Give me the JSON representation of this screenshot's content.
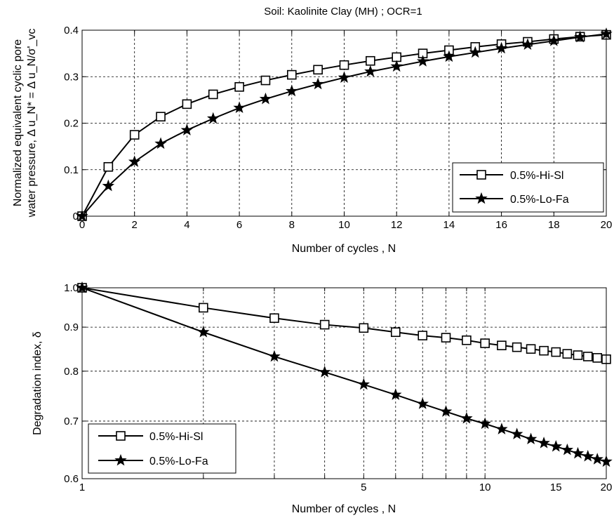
{
  "figure_title": "Soil: Kaolinite Clay (MH) ;  OCR=1",
  "colors": {
    "axes": "#000000",
    "series": "#000000",
    "grid": "#000000",
    "background": "#ffffff"
  },
  "chart_data": [
    {
      "type": "line",
      "title": "Soil: Kaolinite Clay (MH) ;  OCR=1",
      "xlabel": "Number of cycles , N",
      "ylabel_line1": "Normalized equivalent cyclic pore",
      "ylabel_line2": "water pressure, Δ u_N* = Δ u_N/σ'_vc",
      "xscale": "linear",
      "yscale": "linear",
      "xlim": [
        0,
        20
      ],
      "ylim": [
        0,
        0.4
      ],
      "xticks": [
        0,
        2,
        4,
        6,
        8,
        10,
        12,
        14,
        16,
        18,
        20
      ],
      "yticks": [
        0,
        0.1,
        0.2,
        0.3,
        0.4
      ],
      "grid": true,
      "legend_position": "bottom-right",
      "series": [
        {
          "name": "0.5%-Hi-Sl",
          "marker": "square",
          "x": [
            0,
            1,
            2,
            3,
            4,
            5,
            6,
            7,
            8,
            9,
            10,
            11,
            12,
            13,
            14,
            15,
            16,
            17,
            18,
            19,
            20
          ],
          "y": [
            0,
            0.106,
            0.175,
            0.214,
            0.241,
            0.262,
            0.278,
            0.292,
            0.304,
            0.315,
            0.325,
            0.334,
            0.342,
            0.35,
            0.357,
            0.364,
            0.37,
            0.375,
            0.381,
            0.386,
            0.39
          ]
        },
        {
          "name": "0.5%-Lo-Fa",
          "marker": "star",
          "x": [
            0,
            1,
            2,
            3,
            4,
            5,
            6,
            7,
            8,
            9,
            10,
            11,
            12,
            13,
            14,
            15,
            16,
            17,
            18,
            19,
            20
          ],
          "y": [
            0,
            0.065,
            0.117,
            0.156,
            0.185,
            0.21,
            0.233,
            0.252,
            0.269,
            0.284,
            0.298,
            0.311,
            0.322,
            0.333,
            0.343,
            0.352,
            0.361,
            0.369,
            0.377,
            0.385,
            0.392
          ]
        }
      ]
    },
    {
      "type": "line",
      "title": "",
      "xlabel": "Number of cycles , N",
      "ylabel": "Degradation index, δ",
      "xscale": "log",
      "yscale": "log",
      "xlim": [
        1,
        20
      ],
      "ylim": [
        0.6,
        1.0
      ],
      "xticks": [
        1,
        5,
        10,
        15,
        20
      ],
      "xtick_labels": [
        "1",
        "5",
        "10",
        "15",
        "20"
      ],
      "yticks": [
        0.6,
        0.7,
        0.8,
        0.9,
        1.0
      ],
      "ytick_labels": [
        "0.6",
        "0.7",
        "0.8",
        "0.9",
        "1.0"
      ],
      "xgrid_values": [
        2,
        3,
        4,
        5,
        6,
        7,
        8,
        9,
        10,
        20
      ],
      "grid": true,
      "legend_position": "bottom-left",
      "series": [
        {
          "name": "0.5%-Hi-Sl",
          "marker": "square",
          "x": [
            1,
            2,
            3,
            4,
            5,
            6,
            7,
            8,
            9,
            10,
            11,
            12,
            13,
            14,
            15,
            16,
            17,
            18,
            19,
            20
          ],
          "y": [
            1.0,
            0.948,
            0.922,
            0.906,
            0.898,
            0.888,
            0.88,
            0.875,
            0.869,
            0.862,
            0.857,
            0.853,
            0.849,
            0.845,
            0.842,
            0.838,
            0.835,
            0.832,
            0.829,
            0.826
          ]
        },
        {
          "name": "0.5%-Lo-Fa",
          "marker": "star",
          "x": [
            1,
            2,
            3,
            4,
            5,
            6,
            7,
            8,
            9,
            10,
            11,
            12,
            13,
            14,
            15,
            16,
            17,
            18,
            19,
            20
          ],
          "y": [
            1.0,
            0.888,
            0.832,
            0.798,
            0.772,
            0.751,
            0.733,
            0.718,
            0.705,
            0.695,
            0.685,
            0.676,
            0.667,
            0.66,
            0.654,
            0.648,
            0.642,
            0.637,
            0.632,
            0.628
          ]
        }
      ]
    }
  ]
}
